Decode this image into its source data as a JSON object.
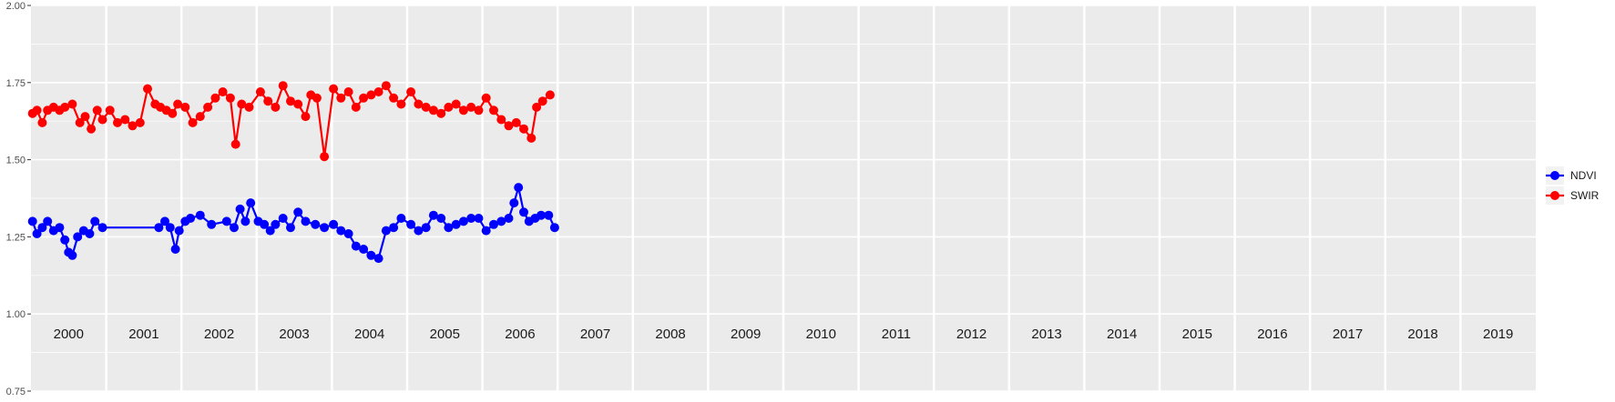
{
  "chart_data": {
    "type": "line",
    "title": "",
    "xlabel": "",
    "ylabel": "",
    "ylim": [
      0.75,
      2.0
    ],
    "yticks": [
      "0.75",
      "1.00",
      "1.25",
      "1.50",
      "1.75",
      "2.00"
    ],
    "ytick_values": [
      0.75,
      1.0,
      1.25,
      1.5,
      1.75,
      2.0
    ],
    "grid": true,
    "legend_position": "right",
    "panels": [
      "2000",
      "2001",
      "2002",
      "2003",
      "2004",
      "2005",
      "2006",
      "2007",
      "2008",
      "2009",
      "2010",
      "2011",
      "2012",
      "2013",
      "2014",
      "2015",
      "2016",
      "2017",
      "2018",
      "2019"
    ],
    "series": [
      {
        "name": "NDVI",
        "color": "#0000ff",
        "x": [
          2000.02,
          2000.08,
          2000.15,
          2000.22,
          2000.3,
          2000.38,
          2000.45,
          2000.5,
          2000.55,
          2000.62,
          2000.7,
          2000.78,
          2000.85,
          2000.95,
          2001.7,
          2001.78,
          2001.85,
          2001.92,
          2001.97,
          2002.05,
          2002.12,
          2002.25,
          2002.4,
          2002.6,
          2002.7,
          2002.78,
          2002.85,
          2002.92,
          2003.02,
          2003.1,
          2003.18,
          2003.25,
          2003.35,
          2003.45,
          2003.55,
          2003.65,
          2003.78,
          2003.9,
          2004.02,
          2004.12,
          2004.22,
          2004.32,
          2004.42,
          2004.52,
          2004.62,
          2004.72,
          2004.82,
          2004.92,
          2005.05,
          2005.15,
          2005.25,
          2005.35,
          2005.45,
          2005.55,
          2005.65,
          2005.75,
          2005.85,
          2005.95,
          2006.05,
          2006.15,
          2006.25,
          2006.35,
          2006.42,
          2006.48,
          2006.55,
          2006.62,
          2006.7,
          2006.78,
          2006.88,
          2006.96
        ],
        "y": [
          1.3,
          1.26,
          1.28,
          1.3,
          1.27,
          1.28,
          1.24,
          1.2,
          1.19,
          1.25,
          1.27,
          1.26,
          1.3,
          1.28,
          1.28,
          1.3,
          1.28,
          1.21,
          1.27,
          1.3,
          1.31,
          1.32,
          1.29,
          1.3,
          1.28,
          1.34,
          1.3,
          1.36,
          1.3,
          1.29,
          1.27,
          1.29,
          1.31,
          1.28,
          1.33,
          1.3,
          1.29,
          1.28,
          1.29,
          1.27,
          1.26,
          1.22,
          1.21,
          1.19,
          1.18,
          1.27,
          1.28,
          1.31,
          1.29,
          1.27,
          1.28,
          1.32,
          1.31,
          1.28,
          1.29,
          1.3,
          1.31,
          1.31,
          1.27,
          1.29,
          1.3,
          1.31,
          1.36,
          1.41,
          1.33,
          1.3,
          1.31,
          1.32,
          1.32,
          1.28
        ]
      },
      {
        "name": "SWIR",
        "color": "#ff0000",
        "x": [
          2000.02,
          2000.08,
          2000.15,
          2000.22,
          2000.3,
          2000.38,
          2000.45,
          2000.55,
          2000.65,
          2000.72,
          2000.8,
          2000.88,
          2000.95,
          2001.05,
          2001.15,
          2001.25,
          2001.35,
          2001.45,
          2001.55,
          2001.65,
          2001.72,
          2001.8,
          2001.88,
          2001.95,
          2002.05,
          2002.15,
          2002.25,
          2002.35,
          2002.45,
          2002.55,
          2002.65,
          2002.72,
          2002.8,
          2002.9,
          2003.05,
          2003.15,
          2003.25,
          2003.35,
          2003.45,
          2003.55,
          2003.65,
          2003.72,
          2003.8,
          2003.9,
          2004.02,
          2004.12,
          2004.22,
          2004.32,
          2004.42,
          2004.52,
          2004.62,
          2004.72,
          2004.82,
          2004.92,
          2005.05,
          2005.15,
          2005.25,
          2005.35,
          2005.45,
          2005.55,
          2005.65,
          2005.75,
          2005.85,
          2005.95,
          2006.05,
          2006.15,
          2006.25,
          2006.35,
          2006.45,
          2006.55,
          2006.65,
          2006.72,
          2006.8,
          2006.9
        ],
        "y": [
          1.65,
          1.66,
          1.62,
          1.66,
          1.67,
          1.66,
          1.67,
          1.68,
          1.62,
          1.64,
          1.6,
          1.66,
          1.63,
          1.66,
          1.62,
          1.63,
          1.61,
          1.62,
          1.73,
          1.68,
          1.67,
          1.66,
          1.65,
          1.68,
          1.67,
          1.62,
          1.64,
          1.67,
          1.7,
          1.72,
          1.7,
          1.55,
          1.68,
          1.67,
          1.72,
          1.69,
          1.67,
          1.74,
          1.69,
          1.68,
          1.64,
          1.71,
          1.7,
          1.51,
          1.73,
          1.7,
          1.72,
          1.67,
          1.7,
          1.71,
          1.72,
          1.74,
          1.7,
          1.68,
          1.72,
          1.68,
          1.67,
          1.66,
          1.65,
          1.67,
          1.68,
          1.66,
          1.67,
          1.66,
          1.7,
          1.66,
          1.63,
          1.61,
          1.62,
          1.6,
          1.57,
          1.67,
          1.69,
          1.71
        ]
      }
    ]
  }
}
